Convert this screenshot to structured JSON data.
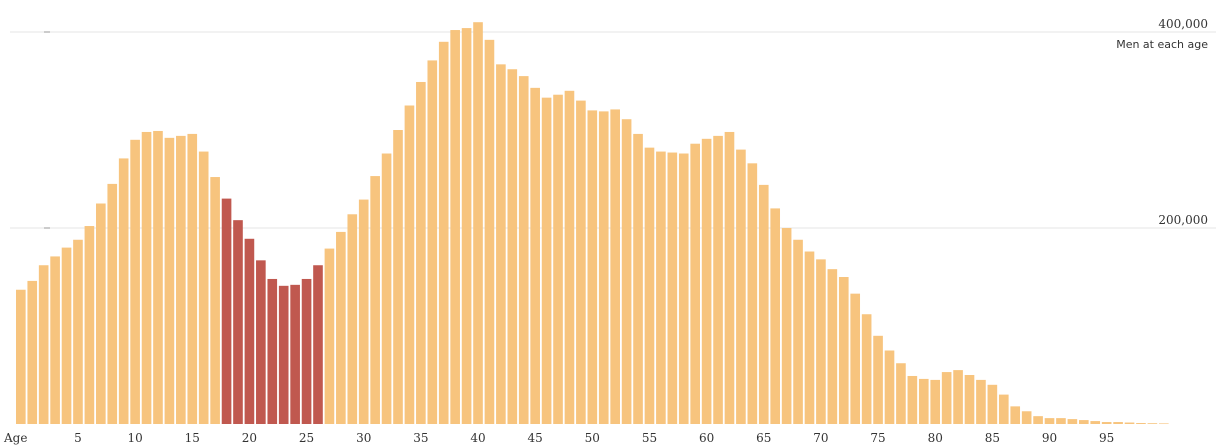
{
  "chart_data": {
    "type": "bar",
    "ylabel": "Men at each age",
    "xlabel": "Age",
    "ylim": [
      0,
      410000
    ],
    "yticks": [
      200000,
      400000
    ],
    "ytick_labels": [
      "200,000",
      "400,000"
    ],
    "xticks": [
      5,
      10,
      15,
      20,
      25,
      30,
      35,
      40,
      45,
      50,
      55,
      60,
      65,
      70,
      75,
      80,
      85,
      90,
      95
    ],
    "grid": true,
    "colors": {
      "base": "#f7c47e",
      "highlight": "#c0584f"
    },
    "highlight_range": [
      18,
      26
    ],
    "series": [
      {
        "x": [
          0,
          1,
          2,
          3,
          4,
          5,
          6,
          7,
          8,
          9,
          10,
          11,
          12,
          13,
          14,
          15,
          16,
          17,
          18,
          19,
          20,
          21,
          22,
          23,
          24,
          25,
          26,
          27,
          28,
          29,
          30,
          31,
          32,
          33,
          34,
          35,
          36,
          37,
          38,
          39,
          40,
          41,
          42,
          43,
          44,
          45,
          46,
          47,
          48,
          49,
          50,
          51,
          52,
          53,
          54,
          55,
          56,
          57,
          58,
          59,
          60,
          61,
          62,
          63,
          64,
          65,
          66,
          67,
          68,
          69,
          70,
          71,
          72,
          73,
          74,
          75,
          76,
          77,
          78,
          79,
          80,
          81,
          82,
          83,
          84,
          85,
          86,
          87,
          88,
          89,
          90,
          91,
          92,
          93,
          94,
          95,
          96,
          97,
          98,
          99,
          100
        ],
        "values": [
          137000,
          146000,
          162000,
          171000,
          180000,
          188000,
          202000,
          225000,
          245000,
          271000,
          290000,
          298000,
          299000,
          292000,
          294000,
          296000,
          278000,
          252000,
          230000,
          208000,
          189000,
          167000,
          148000,
          141000,
          142000,
          148000,
          162000,
          179000,
          196000,
          214000,
          229000,
          253000,
          276000,
          300000,
          325000,
          349000,
          371000,
          390000,
          402000,
          404000,
          410000,
          392000,
          367000,
          362000,
          355000,
          343000,
          333000,
          336000,
          340000,
          330000,
          320000,
          319000,
          321000,
          311000,
          296000,
          282000,
          278000,
          277000,
          276000,
          286000,
          291000,
          294000,
          298000,
          280000,
          266000,
          244000,
          220000,
          200000,
          188000,
          176000,
          168000,
          158000,
          150000,
          133000,
          112000,
          90000,
          75000,
          62000,
          49000,
          46000,
          45000,
          53000,
          55000,
          50000,
          45000,
          40000,
          30000,
          18000,
          13000,
          8000,
          6000,
          6000,
          5000,
          4000,
          3000,
          2000,
          2000,
          1500,
          1000,
          800,
          600
        ]
      }
    ]
  }
}
